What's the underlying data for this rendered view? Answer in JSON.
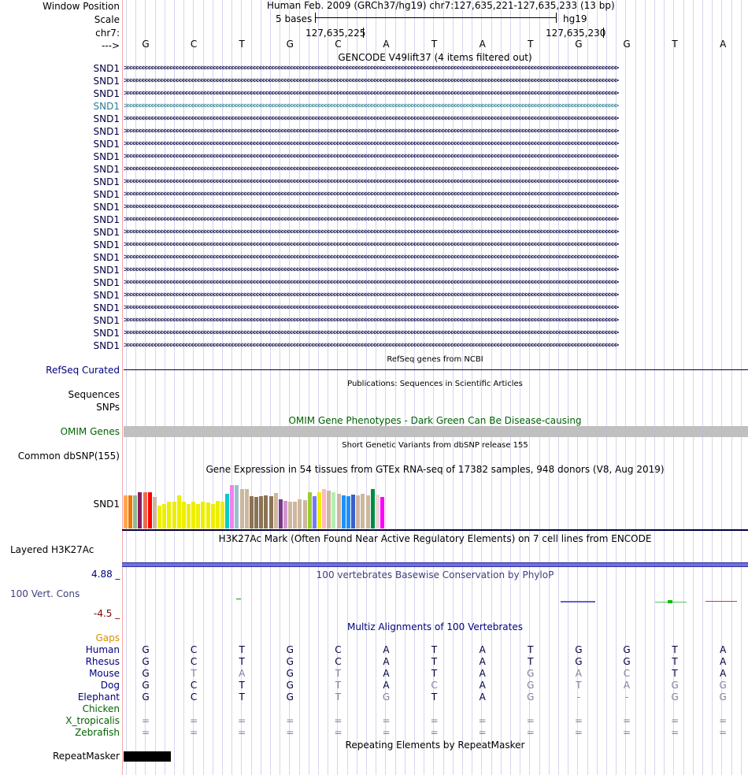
{
  "header": {
    "window_position_label": "Window Position",
    "scale_label": "Scale",
    "chrom_label": "chr7:",
    "strand_label": "--->",
    "assembly_text": "Human Feb. 2009 (GRCh37/hg19)   chr7:127,635,221-127,635,233 (13 bp)",
    "scale_text": "5 bases",
    "db_text": "hg19",
    "coord_left": "127,635,225",
    "coord_right": "127,635,230"
  },
  "sequence": [
    "G",
    "C",
    "T",
    "G",
    "C",
    "A",
    "T",
    "A",
    "T",
    "G",
    "G",
    "T",
    "A"
  ],
  "gencode": {
    "title": "GENCODE V49lift37 (4 items filtered out)",
    "items": [
      "SND1",
      "SND1",
      "SND1",
      "SND1",
      "SND1",
      "SND1",
      "SND1",
      "SND1",
      "SND1",
      "SND1",
      "SND1",
      "SND1",
      "SND1",
      "SND1",
      "SND1",
      "SND1",
      "SND1",
      "SND1",
      "SND1",
      "SND1",
      "SND1",
      "SND1",
      "SND1"
    ],
    "highlight_index": 3,
    "colors": {
      "default": "#000040",
      "highlight": "#2a8090"
    }
  },
  "refseq": {
    "title": "RefSeq genes from NCBI",
    "label": "RefSeq Curated"
  },
  "publications": {
    "title": "Publications: Sequences in Scientific Articles",
    "label1": "Sequences",
    "label2": "SNPs"
  },
  "omim": {
    "title": "OMIM Gene Phenotypes - Dark Green Can Be Disease-causing",
    "label": "OMIM Genes",
    "color": "#006400",
    "bar_color": "#c0c0c0"
  },
  "dbsnp": {
    "title": "Short Genetic Variants from dbSNP release 155",
    "label": "Common dbSNP(155)"
  },
  "gtex": {
    "title": "Gene Expression in 54 tissues from GTEx RNA-seq of 17382 samples, 948 donors (V8, Aug 2019)",
    "label": "SND1",
    "colors": [
      "#ffa54f",
      "#ee7600",
      "#8fbc8f",
      "#8b1c62",
      "#ee6a50",
      "#ff0000",
      "#cdb79e",
      "#eeee00",
      "#eeee00",
      "#eeee00",
      "#eeee00",
      "#eeee00",
      "#eeee00",
      "#eeee00",
      "#eeee00",
      "#eeee00",
      "#eeee00",
      "#eeee00",
      "#eeee00",
      "#eeee00",
      "#eeee00",
      "#00cdcd",
      "#ee82ee",
      "#9ac0cd",
      "#cdb79e",
      "#cdb79e",
      "#8b7355",
      "#8b7355",
      "#8b7355",
      "#8b7355",
      "#8b7355",
      "#cdb79e",
      "#7a378b",
      "#cd96cd",
      "#cdb79e",
      "#cdb79e",
      "#cdb79e",
      "#cdb79e",
      "#9acd32",
      "#7777ff",
      "#eeee00",
      "#ffb6c1",
      "#cdb79e",
      "#b4eeb4",
      "#cdb79e",
      "#1e90ff",
      "#1e90ff",
      "#3a5fcd",
      "#cdb79e",
      "#cdb79e",
      "#cdb79e",
      "#008b45",
      "#eed5d2",
      "#ff00ff"
    ],
    "values": [
      0.62,
      0.62,
      0.62,
      0.69,
      0.68,
      0.68,
      0.6,
      0.43,
      0.46,
      0.5,
      0.5,
      0.62,
      0.5,
      0.46,
      0.51,
      0.47,
      0.5,
      0.49,
      0.46,
      0.52,
      0.51,
      0.66,
      0.82,
      0.82,
      0.74,
      0.74,
      0.61,
      0.6,
      0.61,
      0.62,
      0.61,
      0.67,
      0.55,
      0.52,
      0.51,
      0.51,
      0.55,
      0.53,
      0.69,
      0.61,
      0.68,
      0.74,
      0.72,
      0.68,
      0.65,
      0.62,
      0.61,
      0.64,
      0.63,
      0.66,
      0.63,
      0.74,
      0.64,
      0.6
    ]
  },
  "h3k27ac": {
    "title": "H3K27Ac Mark (Often Found Near Active Regulatory Elements) on 7 cell lines from ENCODE",
    "label": "Layered H3K27Ac"
  },
  "phylop": {
    "title": "100 vertebrates Basewise Conservation by PhyloP",
    "label": "100 Vert. Cons",
    "max_label": "4.88 _",
    "min_label": "-4.5 _"
  },
  "multiz": {
    "title": "Multiz Alignments of 100 Vertebrates",
    "gaps_label": "Gaps",
    "species": [
      {
        "name": "Human",
        "bases": [
          "G",
          "C",
          "T",
          "G",
          "C",
          "A",
          "T",
          "A",
          "T",
          "G",
          "G",
          "T",
          "A"
        ],
        "dim": [
          0,
          0,
          0,
          0,
          0,
          0,
          0,
          0,
          0,
          0,
          0,
          0,
          0
        ]
      },
      {
        "name": "Rhesus",
        "bases": [
          "G",
          "C",
          "T",
          "G",
          "C",
          "A",
          "T",
          "A",
          "T",
          "G",
          "G",
          "T",
          "A"
        ],
        "dim": [
          0,
          0,
          0,
          0,
          0,
          0,
          0,
          0,
          0,
          0,
          0,
          0,
          0
        ]
      },
      {
        "name": "Mouse",
        "bases": [
          "G",
          "T",
          "A",
          "G",
          "T",
          "A",
          "T",
          "A",
          "G",
          "A",
          "C",
          "T",
          "A"
        ],
        "dim": [
          0,
          1,
          1,
          0,
          1,
          0,
          0,
          0,
          1,
          1,
          1,
          0,
          0
        ]
      },
      {
        "name": "Dog",
        "bases": [
          "G",
          "C",
          "T",
          "G",
          "T",
          "A",
          "C",
          "A",
          "G",
          "T",
          "A",
          "G",
          "G"
        ],
        "dim": [
          0,
          0,
          0,
          0,
          1,
          0,
          1,
          0,
          1,
          1,
          1,
          1,
          1
        ]
      },
      {
        "name": "Elephant",
        "bases": [
          "G",
          "C",
          "T",
          "G",
          "T",
          "G",
          "T",
          "A",
          "G",
          "-",
          "-",
          "G",
          "G"
        ],
        "dim": [
          0,
          0,
          0,
          0,
          1,
          1,
          0,
          0,
          1,
          1,
          1,
          1,
          1
        ]
      },
      {
        "name": "Chicken",
        "bases": [
          "",
          "",
          "",
          "",
          "",
          "",
          "",
          "",
          "",
          "",
          "",
          "",
          ""
        ],
        "dim": [
          0,
          0,
          0,
          0,
          0,
          0,
          0,
          0,
          0,
          0,
          0,
          0,
          0
        ]
      },
      {
        "name": "X_tropicalis",
        "bases": [
          "=",
          "=",
          "=",
          "=",
          "=",
          "=",
          "=",
          "=",
          "=",
          "=",
          "=",
          "=",
          "="
        ],
        "dim": [
          1,
          1,
          1,
          1,
          1,
          1,
          1,
          1,
          1,
          1,
          1,
          1,
          1
        ]
      },
      {
        "name": "Zebrafish",
        "bases": [
          "=",
          "=",
          "=",
          "=",
          "=",
          "=",
          "=",
          "=",
          "=",
          "=",
          "=",
          "=",
          "="
        ],
        "dim": [
          1,
          1,
          1,
          1,
          1,
          1,
          1,
          1,
          1,
          1,
          1,
          1,
          1
        ]
      }
    ]
  },
  "repeatmasker": {
    "title": "Repeating Elements by RepeatMasker",
    "label": "RepeatMasker"
  },
  "colors": {
    "mammal": "#000080",
    "non_mammal": "#006400",
    "gaps": "#d89000",
    "dim_base": "#8080a0",
    "phylop_label": "#404080",
    "phylop_max": "#000080",
    "phylop_min": "#800000",
    "gene_blue": "#000040",
    "grid": "#d6d6ec"
  }
}
